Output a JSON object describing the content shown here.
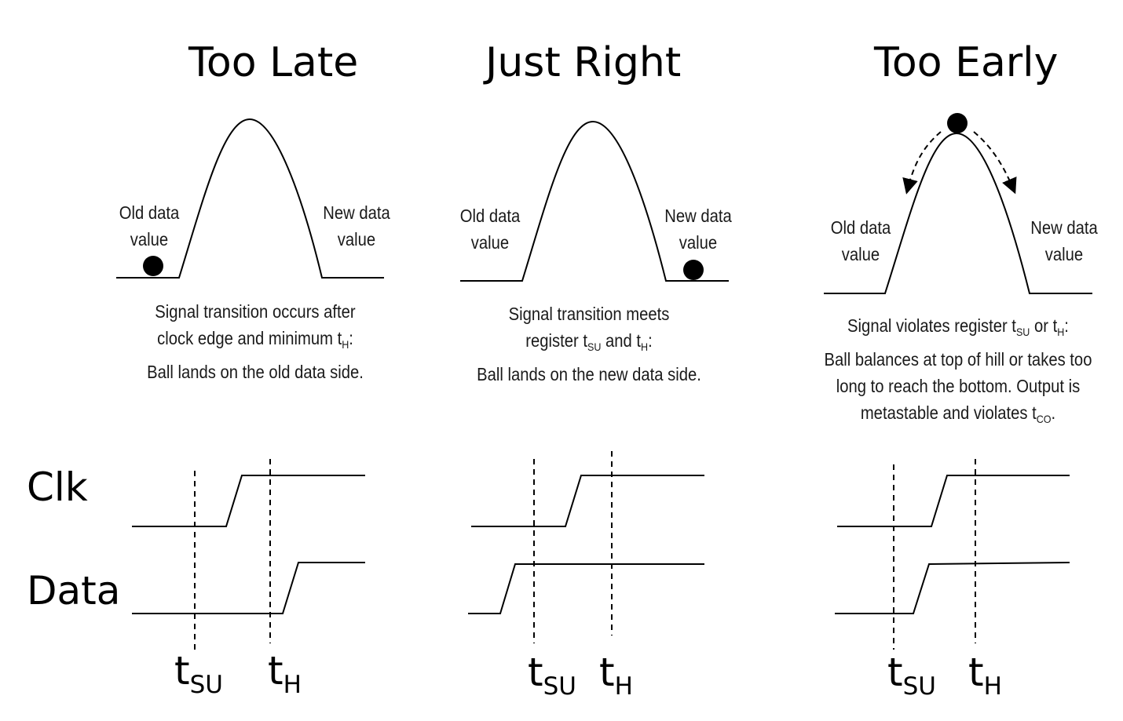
{
  "panels": [
    {
      "title": "Too Late",
      "old_label": [
        "Old data",
        "value"
      ],
      "new_label": [
        "New data",
        "value"
      ],
      "caption": {
        "line1": "Signal transition occurs after",
        "line2_pre": "clock edge and minimum t",
        "line2_sub": "H",
        "line2_post": ":",
        "line3": "Ball lands on the old data side."
      }
    },
    {
      "title": "Just Right",
      "old_label": [
        "Old data",
        "value"
      ],
      "new_label": [
        "New data",
        "value"
      ],
      "caption": {
        "line1": "Signal transition meets",
        "line2_pre": "register t",
        "line2_sub": "SU",
        "line2_mid": " and t",
        "line2_sub2": "H",
        "line2_post": ":",
        "line3": "Ball lands on the new data side."
      }
    },
    {
      "title": "Too Early",
      "old_label": [
        "Old data",
        "value"
      ],
      "new_label": [
        "New data",
        "value"
      ],
      "caption": {
        "line1_pre": "Signal violates register t",
        "line1_sub": "SU",
        "line1_mid": " or t",
        "line1_sub2": "H",
        "line1_post": ":",
        "line2": "Ball balances at top of hill or takes too",
        "line3": "long to reach the bottom. Output is",
        "line4_pre": "metastable and violates t",
        "line4_sub": "CO",
        "line4_post": "."
      }
    }
  ],
  "signals": {
    "clk": "Clk",
    "data": "Data"
  },
  "markers": {
    "t": "t",
    "su": "SU",
    "h": "H"
  }
}
